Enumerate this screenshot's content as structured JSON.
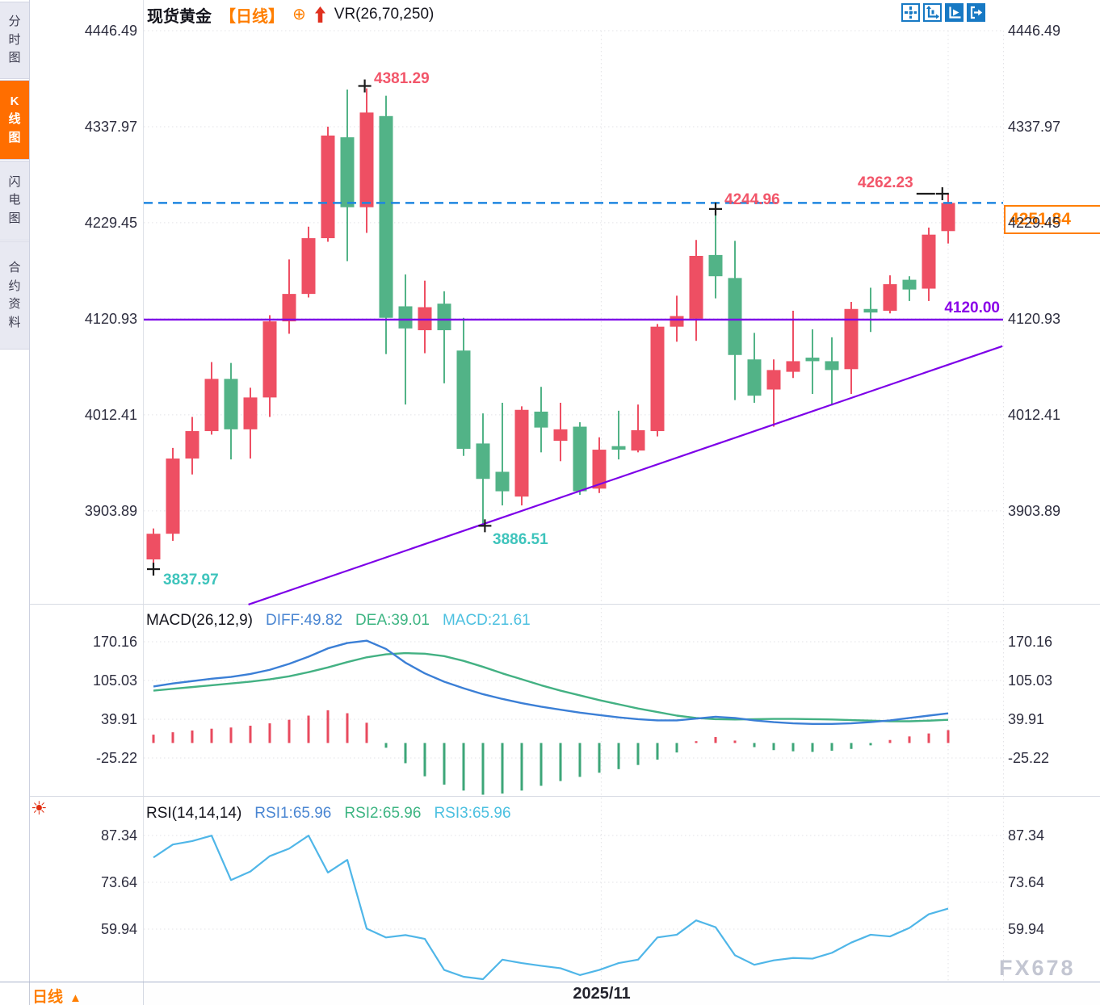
{
  "window": {
    "watermark": "FX678"
  },
  "sidebar": {
    "tabs": [
      {
        "label": "分时图",
        "active": false
      },
      {
        "label": "K线图",
        "active": true
      },
      {
        "label": "闪电图",
        "active": false
      },
      {
        "label": "合约资料",
        "active": false
      }
    ]
  },
  "header": {
    "symbol": "现货黄金",
    "period": "【日线】",
    "plus_icon": "⊕",
    "vr": "VR(26,70,250)"
  },
  "toolbar": {
    "icons": [
      "pan-crosshair",
      "axis-scale",
      "axis-play-active",
      "exit-right"
    ]
  },
  "macd_header": {
    "name": "MACD(26,12,9)",
    "diff": "DIFF:49.82",
    "dea": "DEA:39.01",
    "macd": "MACD:21.61"
  },
  "rsi_header": {
    "name": "RSI(14,14,14)",
    "rsi1": "RSI1:65.96",
    "rsi2": "RSI2:65.96",
    "rsi3": "RSI3:65.96"
  },
  "bottom_bar": {
    "period": "日线",
    "arrow": "▲",
    "date": "2025/11"
  },
  "colors": {
    "up": "#ee4f63",
    "down": "#52b387",
    "hist_up": "#e84a5e",
    "hist_down": "#3da678",
    "purple_line": "#7d00e8",
    "dashed_blue": "#1e86e0",
    "diff_line": "#3b7fd6",
    "dea_line": "#43b183",
    "rsi_line": "#4fb6e8",
    "accent_orange": "#ff7e00",
    "marker": "#1c1c1c",
    "grid": "#e2e2e6",
    "axis_text": "#2d2d3e"
  },
  "chart_data": {
    "type": "candlestick_with_indicators",
    "symbol": "现货黄金",
    "period": "日线",
    "x_axis_label": "2025/11",
    "price_axis_ticks": [
      "4446.49",
      "4337.97",
      "4229.45",
      "4120.93",
      "4012.41",
      "3903.89"
    ],
    "macd_axis_ticks": [
      "170.16",
      "105.03",
      "39.91",
      "-25.22"
    ],
    "rsi_axis_ticks": [
      "87.34",
      "73.64",
      "59.94"
    ],
    "current_price_label": "4251.84",
    "current_price": 4251.84,
    "support_level": 4120.0,
    "annotations": {
      "peak_high": "4381.29",
      "swing_high": "4244.96",
      "latest_high": "4262.23",
      "level_label": "4120.00",
      "trough": "3886.51",
      "start_low": "3837.97"
    },
    "candles": [
      [
        3849,
        3884,
        3838,
        3878
      ],
      [
        3878,
        3975,
        3870,
        3963
      ],
      [
        3963,
        4010,
        3945,
        3994
      ],
      [
        3994,
        4072,
        3990,
        4053
      ],
      [
        4053,
        4071,
        3962,
        3996
      ],
      [
        3996,
        4043,
        3963,
        4032
      ],
      [
        4032,
        4125,
        4010,
        4118
      ],
      [
        4118,
        4188,
        4104,
        4149
      ],
      [
        4149,
        4225,
        4145,
        4212
      ],
      [
        4212,
        4338,
        4208,
        4328
      ],
      [
        4326,
        4380,
        4186,
        4247
      ],
      [
        4247,
        4381.29,
        4218,
        4354
      ],
      [
        4350,
        4373,
        4081,
        4122
      ],
      [
        4135,
        4171,
        4024,
        4110
      ],
      [
        4108,
        4164,
        4082,
        4134
      ],
      [
        4138,
        4152,
        4048,
        4108
      ],
      [
        4085,
        4122,
        3966,
        3974
      ],
      [
        3980,
        4014,
        3886.51,
        3940
      ],
      [
        3948,
        4026,
        3910,
        3926
      ],
      [
        3920,
        4022,
        3910,
        4018
      ],
      [
        4016,
        4044,
        3970,
        3998
      ],
      [
        3983,
        4026,
        3960,
        3996
      ],
      [
        3999,
        4004,
        3922,
        3926
      ],
      [
        3929,
        3987,
        3924,
        3973
      ],
      [
        3977,
        4017,
        3962,
        3973
      ],
      [
        3972,
        4024,
        3970,
        3995
      ],
      [
        3994,
        4115,
        3988,
        4112
      ],
      [
        4112,
        4147,
        4095,
        4124
      ],
      [
        4121,
        4210,
        4096,
        4192
      ],
      [
        4193,
        4244.96,
        4144,
        4169
      ],
      [
        4167,
        4209,
        4029,
        4080
      ],
      [
        4075,
        4105,
        4026,
        4034
      ],
      [
        4041,
        4075,
        3999,
        4063
      ],
      [
        4061,
        4130,
        4054,
        4073
      ],
      [
        4077,
        4109,
        4036,
        4073
      ],
      [
        4073,
        4100,
        4023,
        4063
      ],
      [
        4064,
        4140,
        4036,
        4132
      ],
      [
        4132,
        4156,
        4106,
        4128
      ],
      [
        4130,
        4170,
        4127,
        4160
      ],
      [
        4165,
        4169,
        4141,
        4154
      ],
      [
        4155,
        4224,
        4141,
        4216
      ],
      [
        4220,
        4262.23,
        4206,
        4251.84
      ]
    ],
    "macd": {
      "diff": [
        95,
        100,
        104,
        108,
        111,
        116,
        123,
        133,
        145,
        159,
        168,
        172,
        158,
        135,
        117,
        103,
        92,
        82,
        74,
        67,
        61,
        56,
        51,
        47,
        43,
        40,
        38,
        38,
        41,
        44,
        42,
        38,
        35,
        33,
        32,
        32,
        33,
        35,
        38,
        42,
        46,
        49.82
      ],
      "dea": [
        88,
        91,
        94,
        97,
        100,
        103,
        107,
        112,
        119,
        127,
        136,
        144,
        149,
        151,
        150,
        146,
        138,
        128,
        117,
        107,
        97,
        88,
        80,
        72,
        65,
        58,
        52,
        46,
        42,
        40,
        39.5,
        40,
        40.5,
        40.5,
        40,
        39.5,
        38.5,
        37.5,
        36.5,
        36.5,
        37.5,
        39.01
      ],
      "hist": [
        14,
        18,
        21,
        24,
        26,
        29,
        33,
        39,
        46,
        55,
        50,
        34,
        -8,
        -34,
        -56,
        -70,
        -80,
        -87,
        -85,
        -80,
        -72,
        -64,
        -57,
        -50,
        -44,
        -37,
        -28,
        -16,
        3,
        10,
        4,
        -7,
        -12,
        -14,
        -15,
        -13,
        -10,
        -4,
        5,
        11,
        16,
        21.61
      ]
    },
    "rsi": [
      80.9,
      84.7,
      85.7,
      87.3,
      74.3,
      76.8,
      81.3,
      83.5,
      87.3,
      76.5,
      80.2,
      60.1,
      57.5,
      58.2,
      57.1,
      48,
      46,
      45.3,
      51,
      50,
      49.2,
      48.5,
      46.5,
      48,
      50,
      51,
      57.5,
      58.3,
      62.5,
      60.5,
      52.3,
      49.5,
      50.8,
      51.5,
      51.3,
      53,
      56,
      58.3,
      57.8,
      60.3,
      64.3,
      65.96
    ],
    "trendline": {
      "start_index": 4.9,
      "start_price": 3798,
      "end_index": 43.8,
      "end_price": 4090
    },
    "markers": [
      {
        "index": 0,
        "price": 3838,
        "tail": false
      },
      {
        "index": 10.9,
        "price": 4384,
        "tail": false
      },
      {
        "index": 17.1,
        "price": 3887,
        "tail": false
      },
      {
        "index": 29,
        "price": 4245,
        "tail": false
      },
      {
        "index": 40.7,
        "price": 4262.23,
        "tail": true
      }
    ],
    "v_gridline_indices": [
      23.1,
      41
    ]
  }
}
